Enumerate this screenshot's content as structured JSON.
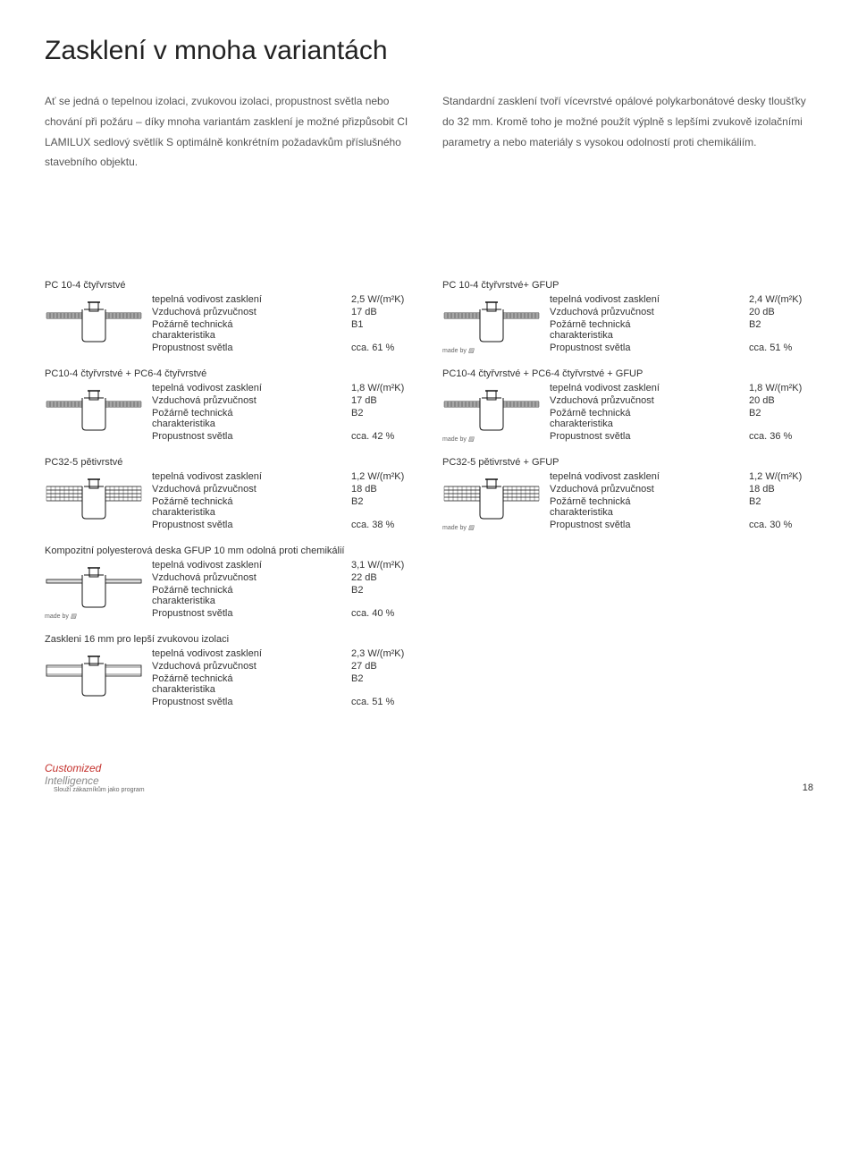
{
  "title": "Zasklení v mnoha variantách",
  "intro_left": "Ať se jedná o tepelnou izolaci, zvukovou izolaci, propustnost světla nebo chování při požáru – díky mnoha variantám zasklení je možné přizpůsobit CI LAMILUX sedlový světlík S optimálně konkrétním požadavkům  příslušného stavebního objektu.",
  "intro_right": "Standardní zasklení tvoří vícevrstvé opálové polykarbonátové desky tloušťky do 32 mm. Kromě toho je možné použít výplně s lepšími zvukově izolačními parametry a nebo materiály s vysokou odolností proti chemikáliím.",
  "labels": {
    "thermal": "tepelná vodivost zasklení",
    "acoustic": "Vzduchová průzvučnost",
    "fire1": "Požárně technická",
    "fire2": "charakteristika",
    "light": "Propustnost světla",
    "madeby": "made by"
  },
  "cards": [
    {
      "title": "PC 10-4 čtyřvrstvé",
      "thermal": "2,5 W/(m²K)",
      "acoustic": "17 dB",
      "fire": "B1",
      "light": "cca. 61 %",
      "variant": "thin4",
      "madeby": false
    },
    {
      "title": "PC 10-4 čtyřvrstvé+ GFUP",
      "thermal": "2,4 W/(m²K)",
      "acoustic": "20 dB",
      "fire": "B2",
      "light": "cca. 51 %",
      "variant": "thin4",
      "madeby": true
    },
    {
      "title": "PC10-4 čtyřvrstvé + PC6-4 čtyřvrstvé",
      "thermal": "1,8 W/(m²K)",
      "acoustic": "17 dB",
      "fire": "B2",
      "light": "cca. 42 %",
      "variant": "thin4",
      "madeby": false
    },
    {
      "title": "PC10-4 čtyřvrstvé + PC6-4 čtyřvrstvé + GFUP",
      "thermal": "1,8 W/(m²K)",
      "acoustic": "20 dB",
      "fire": "B2",
      "light": "cca. 36 %",
      "variant": "thin4",
      "madeby": true
    },
    {
      "title": "PC32-5 pětivrstvé",
      "thermal": "1,2 W/(m²K)",
      "acoustic": "18 dB",
      "fire": "B2",
      "light": "cca. 38 %",
      "variant": "thick5",
      "madeby": false
    },
    {
      "title": "PC32-5 pětivrstvé + GFUP",
      "thermal": "1,2 W/(m²K)",
      "acoustic": "18 dB",
      "fire": "B2",
      "light": "cca. 30 %",
      "variant": "thick5",
      "madeby": true
    },
    {
      "title": "Kompozitní polyesterová deska GFUP 10 mm odolná proti chemikálií",
      "thermal": "3,1 W/(m²K)",
      "acoustic": "22 dB",
      "fire": "B2",
      "light": "cca. 40 %",
      "variant": "solid",
      "madeby": true
    },
    {
      "empty": true
    },
    {
      "title": "Zaskleni 16 mm pro lepší zvukovou izolaci",
      "thermal": "2,3 W/(m²K)",
      "acoustic": "27 dB",
      "fire": "B2",
      "light": "cca. 51 %",
      "variant": "glass",
      "madeby": false
    },
    {
      "empty": true
    }
  ],
  "footer": {
    "logo1": "Customized",
    "logo2": "Intelligence",
    "sub": "Slouží zákazníkům jako program",
    "page": "18"
  },
  "colors": {
    "stroke": "#111111",
    "fill_none": "none"
  }
}
